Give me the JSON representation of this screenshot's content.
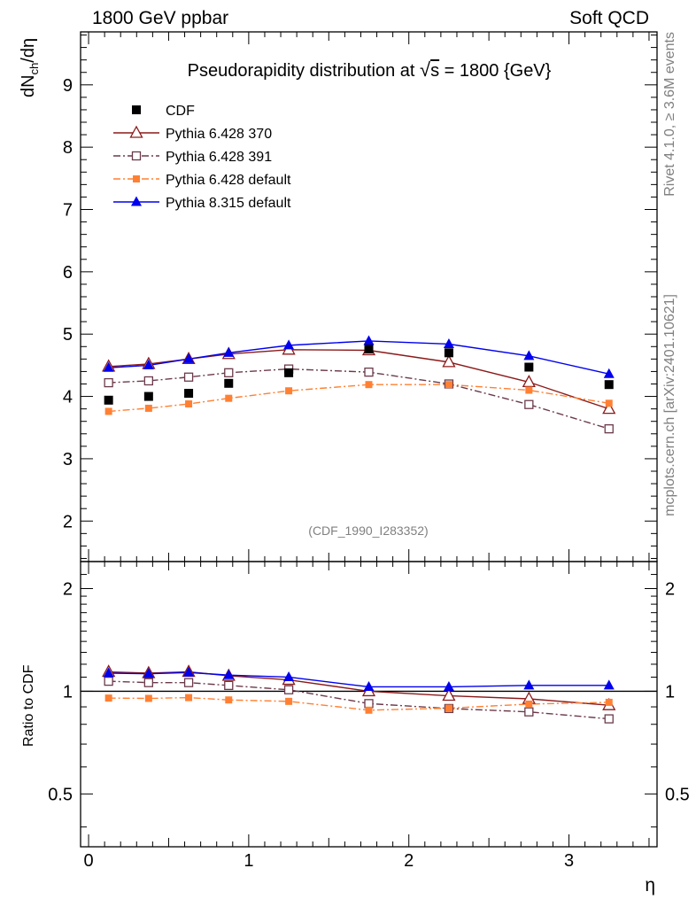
{
  "header": {
    "left": "1800 GeV ppbar",
    "right": "Soft QCD"
  },
  "side": {
    "rivet": "Rivet 4.1.0, ≥ 3.6M events",
    "mcplots": "mcplots.cern.ch [arXiv:2401.10621]"
  },
  "chart_data": {
    "type": "line",
    "title": "Pseudorapidity distribution at √s = 1800 {GeV}",
    "title_prefix": "Pseudorapidity distribution at ",
    "title_sqrt": "√",
    "title_s": "s",
    "title_suffix": " = 1800 {GeV}",
    "analysis_tag": "(CDF_1990_I283352)",
    "xlabel": "η",
    "ylabel_main": "dN",
    "ylabel_sub": "ch",
    "ylabel_tail": "/dη",
    "ratio_ylabel": "Ratio to CDF",
    "xlim": [
      -0.05,
      3.55
    ],
    "ylim_main": [
      1.35,
      9.85
    ],
    "ylim_ratio_log": [
      0.35,
      2.4
    ],
    "x_ticks": [
      0,
      1,
      2,
      3
    ],
    "x_tick_labels": [
      "0",
      "1",
      "2",
      "3"
    ],
    "y_ticks_main": [
      2,
      3,
      4,
      5,
      6,
      7,
      8,
      9
    ],
    "y_tick_labels_main": [
      "2",
      "3",
      "4",
      "5",
      "6",
      "7",
      "8",
      "9"
    ],
    "y_ticks_ratio": [
      0.5,
      1,
      2
    ],
    "y_tick_labels_ratio": [
      "0.5",
      "1",
      "2"
    ],
    "x": [
      0.125,
      0.375,
      0.625,
      0.875,
      1.25,
      1.75,
      2.25,
      2.75,
      3.25
    ],
    "series": [
      {
        "name": "CDF",
        "color": "#000000",
        "marker": "square-filled",
        "line": "none",
        "values": [
          3.94,
          4.0,
          4.05,
          4.21,
          4.38,
          4.76,
          4.7,
          4.47,
          4.19
        ],
        "ratio": [
          1,
          1,
          1,
          1,
          1,
          1,
          1,
          1,
          1
        ]
      },
      {
        "name": "Pythia 6.428 370",
        "color": "#8b1a1a",
        "marker": "triangle-open",
        "line": "solid",
        "values": [
          4.48,
          4.52,
          4.6,
          4.68,
          4.75,
          4.74,
          4.55,
          4.23,
          3.8
        ],
        "ratio": [
          1.14,
          1.13,
          1.14,
          1.11,
          1.08,
          1.0,
          0.97,
          0.95,
          0.91
        ]
      },
      {
        "name": "Pythia 6.428 391",
        "color": "#6b3a4a",
        "marker": "square-open",
        "line": "dashdot",
        "values": [
          4.22,
          4.25,
          4.31,
          4.38,
          4.44,
          4.39,
          4.2,
          3.87,
          3.48
        ],
        "ratio": [
          1.07,
          1.06,
          1.06,
          1.04,
          1.01,
          0.92,
          0.89,
          0.87,
          0.83
        ]
      },
      {
        "name": "Pythia 6.428 default",
        "color": "#ff8033",
        "marker": "square-filled-small",
        "line": "dashdot",
        "values": [
          3.76,
          3.81,
          3.88,
          3.97,
          4.09,
          4.19,
          4.19,
          4.1,
          3.89
        ],
        "ratio": [
          0.955,
          0.953,
          0.958,
          0.943,
          0.934,
          0.88,
          0.892,
          0.917,
          0.928
        ]
      },
      {
        "name": "Pythia 8.315 default",
        "color": "#0000ee",
        "marker": "triangle-filled",
        "line": "solid",
        "values": [
          4.46,
          4.5,
          4.6,
          4.7,
          4.82,
          4.89,
          4.84,
          4.65,
          4.36
        ],
        "ratio": [
          1.13,
          1.125,
          1.135,
          1.115,
          1.1,
          1.03,
          1.03,
          1.04,
          1.04
        ]
      }
    ]
  }
}
